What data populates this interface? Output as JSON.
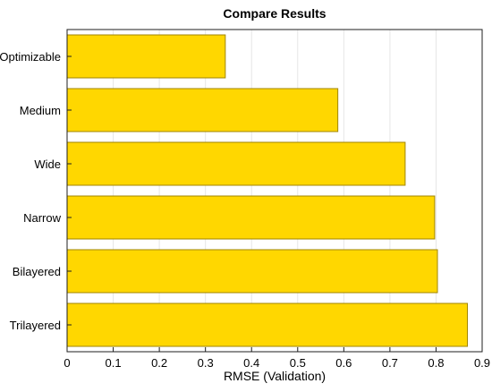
{
  "chart_data": {
    "type": "bar",
    "orientation": "horizontal",
    "title": "Compare Results",
    "xlabel": "RMSE (Validation)",
    "ylabel": "",
    "categories": [
      "Optimizable",
      "Medium",
      "Wide",
      "Narrow",
      "Bilayered",
      "Trilayered"
    ],
    "values": [
      0.343,
      0.587,
      0.733,
      0.797,
      0.803,
      0.868
    ],
    "xlim": [
      0,
      0.9
    ],
    "xticks": [
      0,
      0.1,
      0.2,
      0.3,
      0.4,
      0.5,
      0.6,
      0.7,
      0.8,
      0.9
    ],
    "xtick_labels": [
      "0",
      "0.1",
      "0.2",
      "0.3",
      "0.4",
      "0.5",
      "0.6",
      "0.7",
      "0.8",
      "0.9"
    ],
    "grid": "vertical",
    "bar_color": "#FFD700",
    "bar_edge_color": "#A08600"
  }
}
